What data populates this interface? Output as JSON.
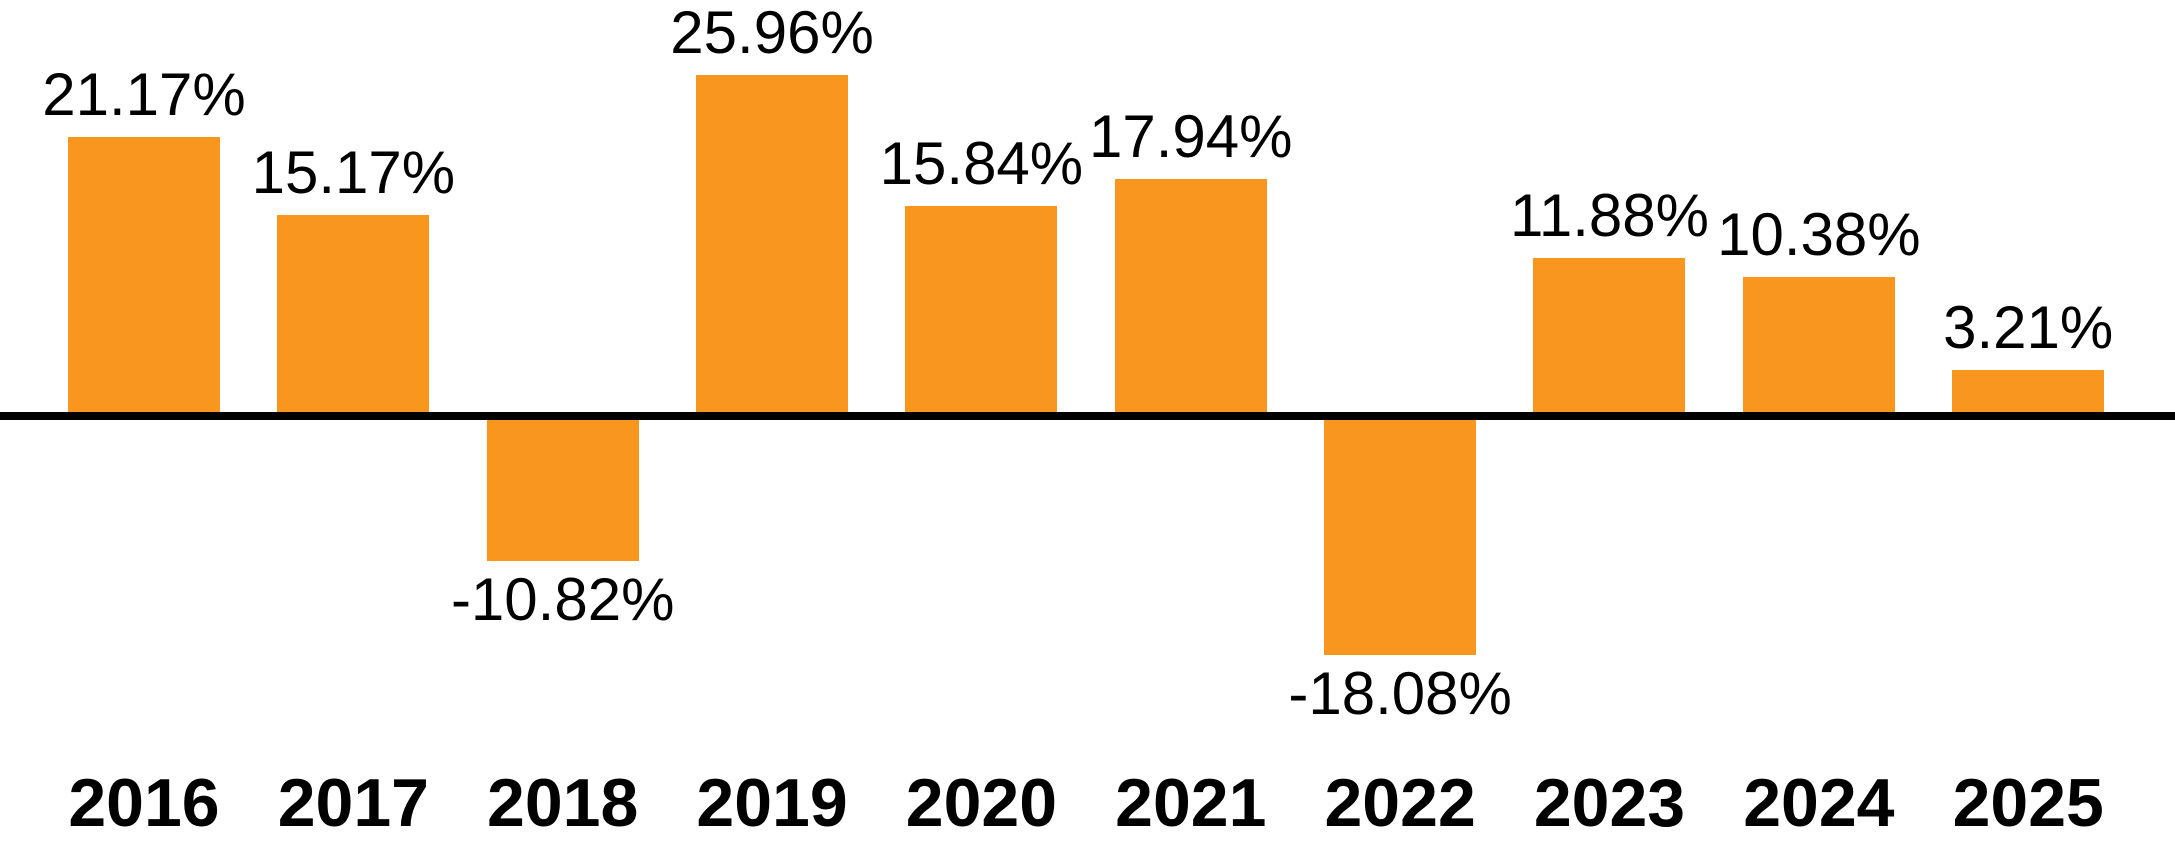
{
  "chart_data": {
    "type": "bar",
    "title": "",
    "xlabel": "",
    "ylabel": "",
    "categories": [
      "2016",
      "2017",
      "2018",
      "2019",
      "2020",
      "2021",
      "2022",
      "2023",
      "2024",
      "2025"
    ],
    "values": [
      21.17,
      15.17,
      -10.82,
      25.96,
      15.84,
      17.94,
      -18.08,
      11.88,
      10.38,
      3.21
    ],
    "value_labels": [
      "21.17%",
      "15.17%",
      "-10.82%",
      "25.96%",
      "15.84%",
      "17.94%",
      "-18.08%",
      "11.88%",
      "10.38%",
      "3.21%"
    ],
    "ylim": [
      -22,
      30
    ],
    "grid": false,
    "legend": false,
    "y_axis_shown": false,
    "value_label_position": "outside-end",
    "bar_color": "#F8961E",
    "baseline_color": "#000000",
    "label_color": "#000000"
  }
}
